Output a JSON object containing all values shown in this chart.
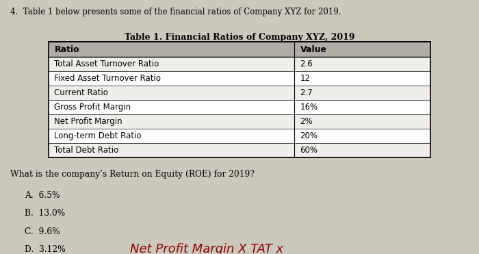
{
  "question_number": "4.",
  "question_text": "Table 1 below presents some of the financial ratios of Company XYZ for 2019.",
  "table_title": "Table 1. Financial Ratios of Company XYZ, 2019",
  "col_headers": [
    "Ratio",
    "Value"
  ],
  "rows": [
    [
      "Total Asset Turnover Ratio",
      "2.6"
    ],
    [
      "Fixed Asset Turnover Ratio",
      "12"
    ],
    [
      "Current Ratio",
      "2.7"
    ],
    [
      "Gross Profit Margin",
      "16%"
    ],
    [
      "Net Profit Margin",
      "2%"
    ],
    [
      "Long-term Debt Ratio",
      "20%"
    ],
    [
      "Total Debt Ratio",
      "60%"
    ]
  ],
  "follow_up": "What is the company’s Return on Equity (ROE) for 2019?",
  "choices": [
    "A.  6.5%",
    "B.  13.0%",
    "C.  9.6%",
    "D.  3.12%"
  ],
  "handwritten_note": "Net Profit Margin X TAT x",
  "bg_color": "#cdc8bc",
  "header_bg": "#b0aca6",
  "row_bg_odd": "#f0eeeb",
  "row_bg_even": "#ffffff",
  "table_border": "#000000",
  "text_color": "#000000",
  "title_fontsize": 9,
  "body_fontsize": 8.5,
  "note_fontsize": 13,
  "note_color": "#8B0000"
}
